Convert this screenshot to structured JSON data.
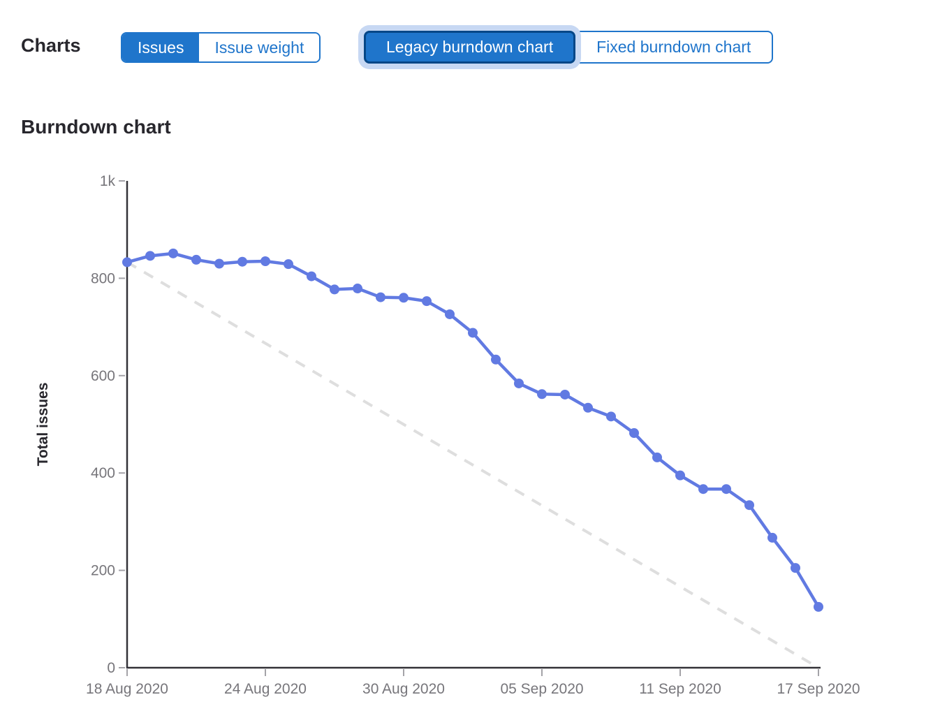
{
  "toolbar": {
    "label": "Charts",
    "metric_toggle": {
      "options": [
        "Issues",
        "Issue weight"
      ],
      "selected": "Issues"
    },
    "chart_type_toggle": {
      "options": [
        "Legacy burndown chart",
        "Fixed burndown chart"
      ],
      "selected": "Legacy burndown chart"
    }
  },
  "chart_data": {
    "type": "line",
    "title": "Burndown chart",
    "ylabel": "Total issues",
    "xlabel": "",
    "ylim": [
      0,
      1000
    ],
    "grid": false,
    "legend": "none",
    "x_unit": "daily dates",
    "x_range": [
      "18 Aug 2020",
      "17 Sep 2020"
    ],
    "x_ticks": [
      {
        "day": 0,
        "label": "18 Aug 2020"
      },
      {
        "day": 6,
        "label": "24 Aug 2020"
      },
      {
        "day": 12,
        "label": "30 Aug 2020"
      },
      {
        "day": 18,
        "label": "05 Sep 2020"
      },
      {
        "day": 24,
        "label": "11 Sep 2020"
      },
      {
        "day": 30,
        "label": "17 Sep 2020"
      }
    ],
    "y_ticks": [
      {
        "value": 0,
        "label": "0"
      },
      {
        "value": 200,
        "label": "200"
      },
      {
        "value": 400,
        "label": "400"
      },
      {
        "value": 600,
        "label": "600"
      },
      {
        "value": 800,
        "label": "800"
      },
      {
        "value": 1000,
        "label": "1k"
      }
    ],
    "series": [
      {
        "name": "Total issues",
        "style": "solid line with dot markers",
        "values_by_day": [
          833,
          846,
          851,
          838,
          830,
          834,
          835,
          829,
          804,
          777,
          779,
          761,
          760,
          753,
          726,
          688,
          633,
          584,
          562,
          561,
          534,
          516,
          482,
          432,
          395,
          367,
          367,
          334,
          267,
          205,
          125
        ]
      }
    ],
    "guideline": {
      "name": "Ideal burndown",
      "style": "dashed",
      "start_value": 833,
      "end_value": 0
    },
    "colors": {
      "series": "#617ae2",
      "guideline": "#dedede",
      "axis": "#333238",
      "tick": "#a4a3a8",
      "tick_label": "#77767b",
      "axis_title": "#28272d",
      "button_blue": "#1f75cb",
      "selected_border": "#064787",
      "focus_halo": "#c7d8f3"
    }
  }
}
